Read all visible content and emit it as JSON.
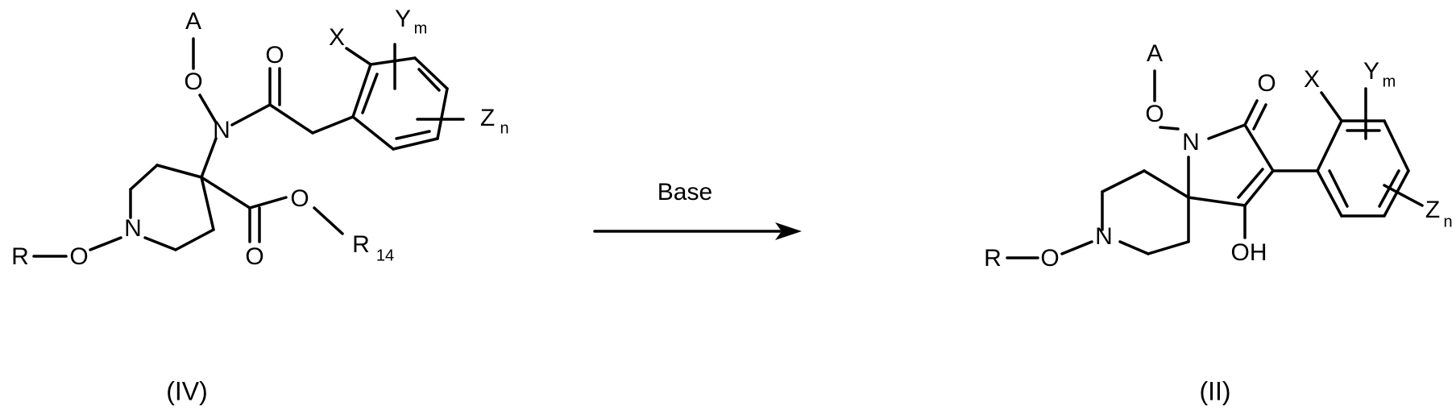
{
  "reactant": {
    "label": "(IV)",
    "atoms": {
      "A": "A",
      "O_top": "O",
      "N_amide": "N",
      "O_carbonyl": "O",
      "X": "X",
      "Y": "Y",
      "Y_sub": "m",
      "Z": "Z",
      "Z_sub": "n",
      "N_ring": "N",
      "O_left": "O",
      "R": "R",
      "O_ester": "O",
      "O_ester_double": "O",
      "R14": "R",
      "R14_sub": "14"
    }
  },
  "reagent": {
    "text": "Base"
  },
  "product": {
    "label": "(II)",
    "atoms": {
      "A": "A",
      "O_top": "O",
      "N_lactam": "N",
      "O_carbonyl": "O",
      "OH": "OH",
      "X": "X",
      "Y": "Y",
      "Y_sub": "m",
      "Z": "Z",
      "Z_sub": "n",
      "N_ring": "N",
      "O_left": "O",
      "R": "R"
    }
  }
}
